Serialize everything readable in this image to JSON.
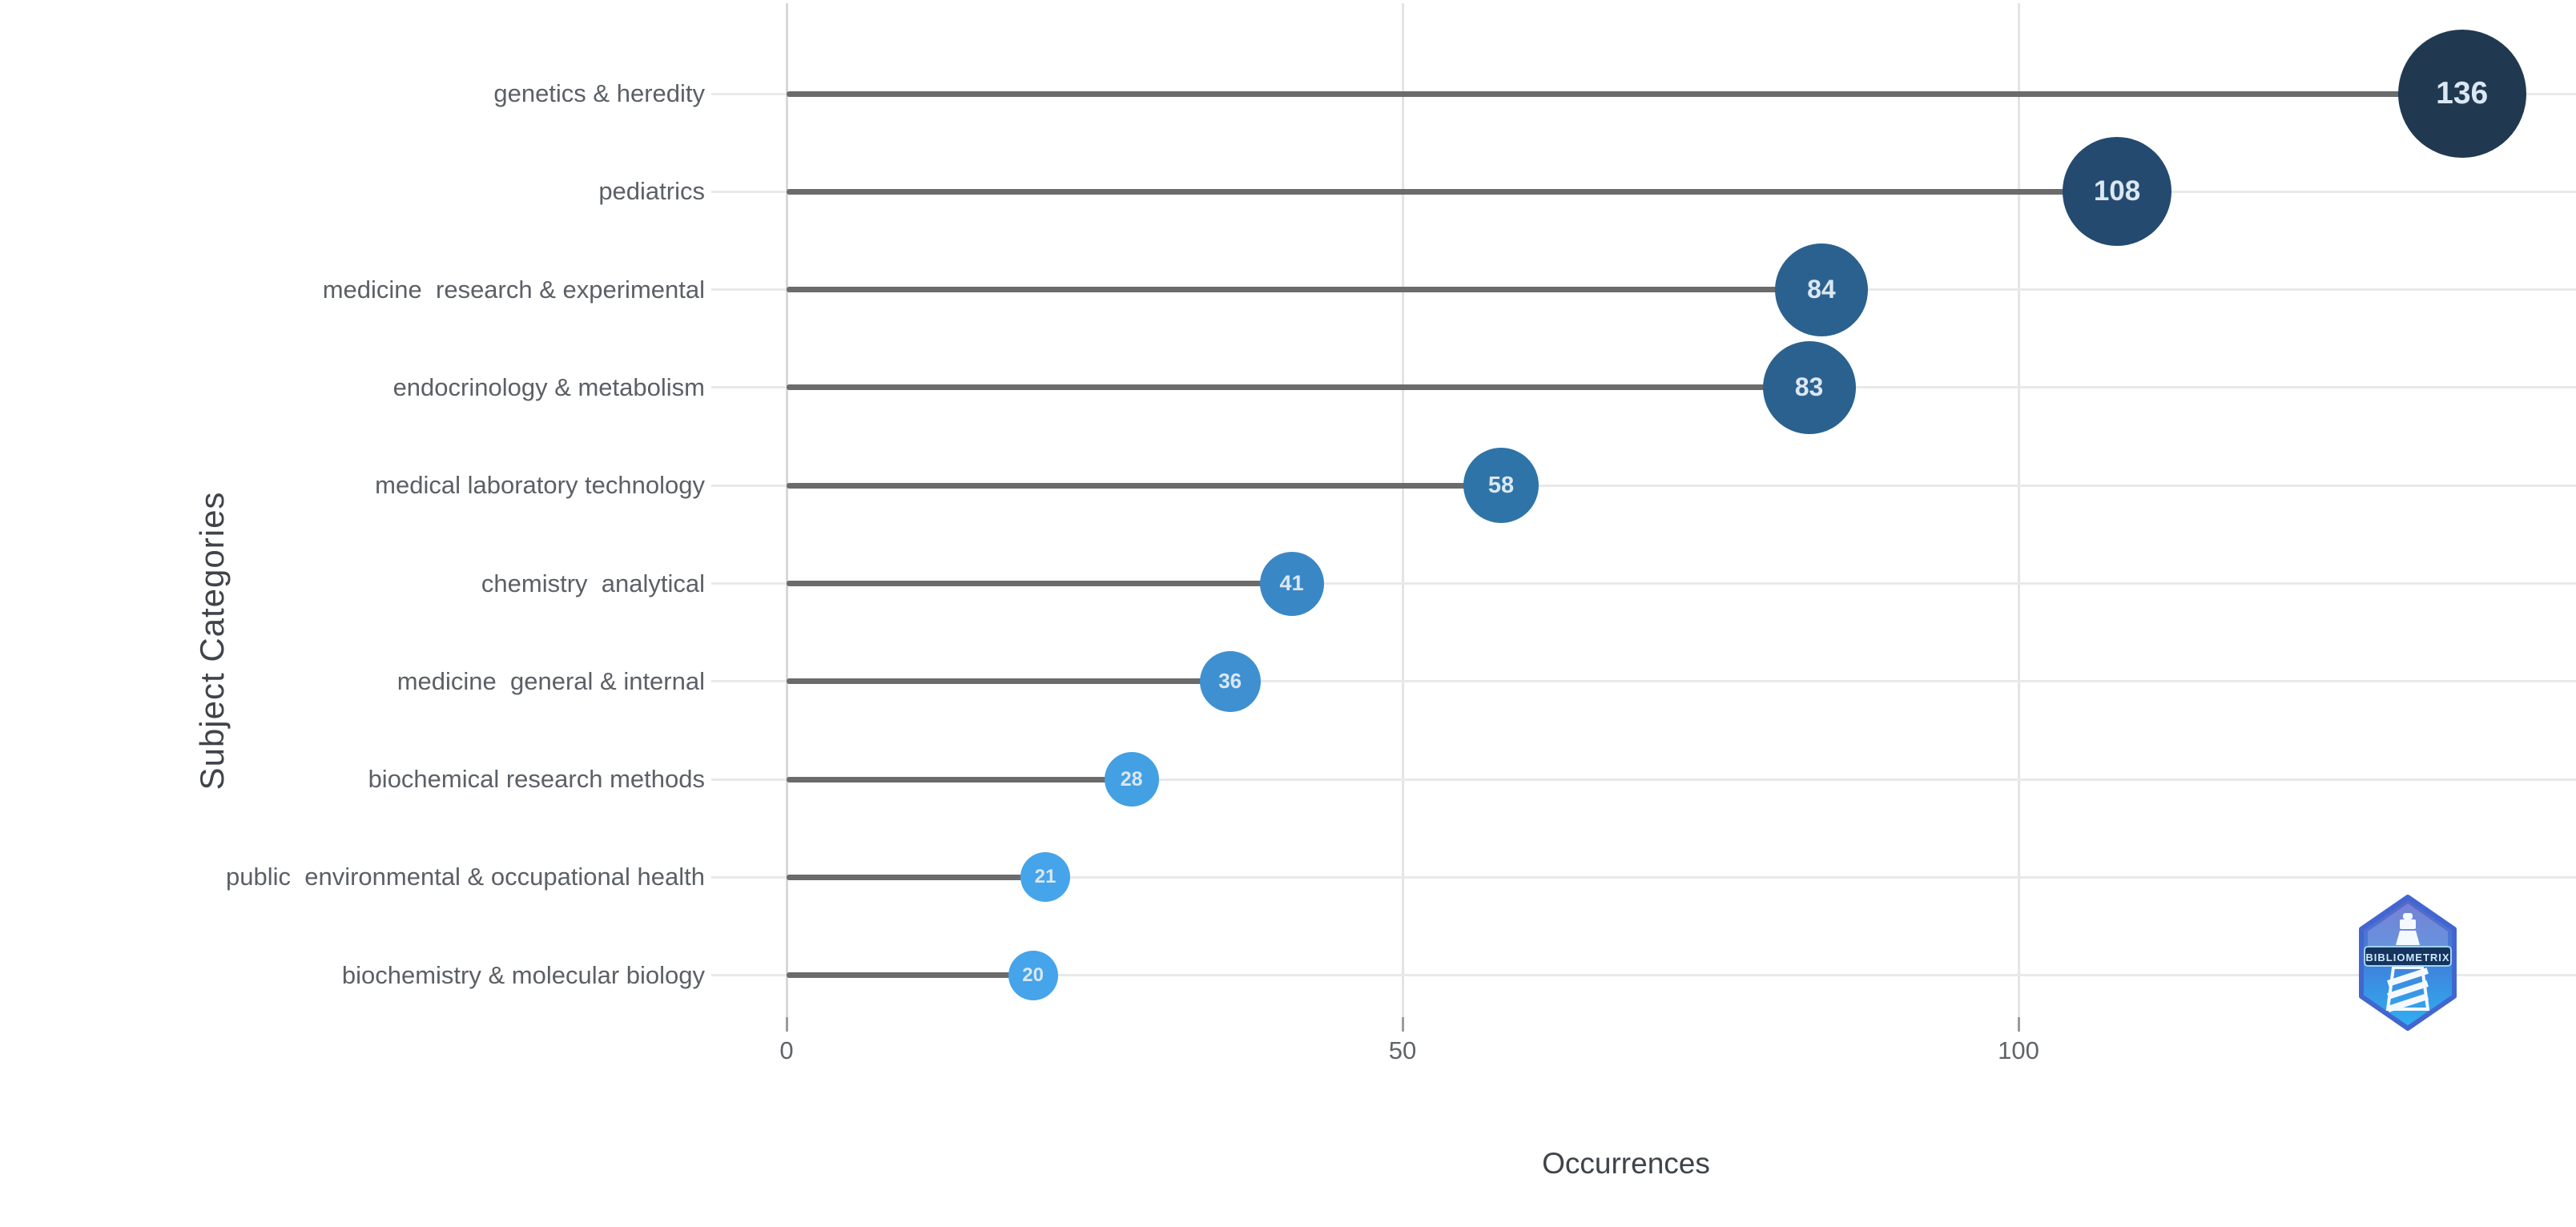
{
  "chart_data": {
    "type": "scatter",
    "variant": "lollipop-dot-plot",
    "title": "",
    "xlabel": "Occurrences",
    "ylabel": "Subject Categories",
    "x_ticks": [
      "0",
      "50",
      "100"
    ],
    "x_tick_values": [
      0,
      50,
      100
    ],
    "xlim": [
      0,
      145
    ],
    "grid": true,
    "legend": "none",
    "categories": [
      "genetics & heredity",
      "pediatrics",
      "medicine  research & experimental",
      "endocrinology & metabolism",
      "medical laboratory technology",
      "chemistry  analytical",
      "medicine  general & internal",
      "biochemical research methods",
      "public  environmental & occupational health",
      "biochemistry & molecular biology"
    ],
    "values": [
      136,
      108,
      84,
      83,
      58,
      41,
      36,
      28,
      21,
      20
    ],
    "point_colors": [
      "#213950",
      "#254a70",
      "#2b618f",
      "#2b618f",
      "#2e74a8",
      "#3a87c6",
      "#3f90d0",
      "#43a0e2",
      "#45a4ea",
      "#45a4ea"
    ],
    "label_color": "#5c6066",
    "stem_color": "#6b6b6b",
    "gridline_color": "#e9e9e9",
    "axis_color": "#d8d8d8",
    "value_text_color": "#dbe7f3"
  },
  "watermark": {
    "text": "BIBLIOMETRIX"
  }
}
